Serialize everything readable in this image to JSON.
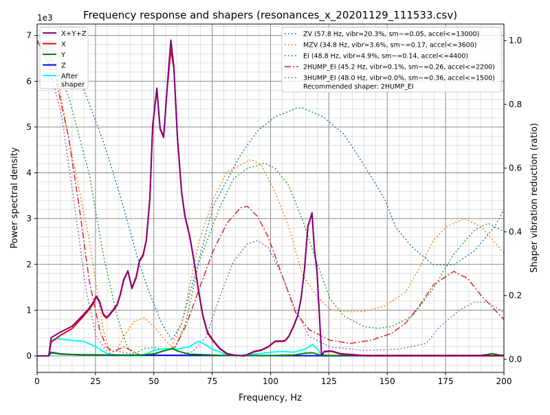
{
  "chart_data": {
    "type": "line",
    "title": "Frequency response and shapers (resonances_x_20201129_111533.csv)",
    "xlabel": "Frequency, Hz",
    "ylabel": "Power spectral density",
    "ylabel_right": "Shaper vibration reduction (ratio)",
    "y_offset_text": "1e3",
    "xlim": [
      0,
      200
    ],
    "ylim": [
      -360,
      7250
    ],
    "ylim_right": [
      -0.041,
      1.052
    ],
    "xticks": [
      "0",
      "25",
      "50",
      "75",
      "100",
      "125",
      "150",
      "175",
      "200"
    ],
    "yticks": [
      "0",
      "1",
      "2",
      "3",
      "4",
      "5",
      "6",
      "7"
    ],
    "yticks_right": [
      "0.0",
      "0.2",
      "0.4",
      "0.6",
      "0.8",
      "1.0"
    ],
    "grid": true,
    "legend_left": {
      "placement": "top-left",
      "entries": [
        "X+Y+Z",
        "X",
        "Y",
        "Z",
        "After\nshaper"
      ]
    },
    "legend_right": {
      "placement": "top-right",
      "entries": [
        "ZV (57.8 Hz, vibr=20.3%, sm~=0.05, accel<=13000)",
        "MZV (34.8 Hz, vibr=3.6%, sm~=0.17, accel<=3600)",
        "EI (48.8 Hz, vibr=4.9%, sm~=0.14, accel<=4400)",
        "2HUMP_EI (45.2 Hz, vibr=0.1%, sm~=0.26, accel<=2200)",
        "3HUMP_EI (48.0 Hz, vibr=0.0%, sm~=0.36, accel<=1500)"
      ],
      "note": "Recommended shaper: 2HUMP_EI"
    },
    "psd_series": [
      {
        "name": "X+Y+Z",
        "color": "#800080",
        "x": [
          0,
          5,
          6,
          10,
          15,
          19.4,
          22.4,
          24.4,
          25.3,
          26.8,
          28.3,
          29.7,
          31.2,
          34.2,
          35.6,
          37.1,
          38.9,
          40.6,
          42.4,
          43.9,
          45.4,
          46.8,
          48.3,
          49.5,
          51.3,
          52.7,
          54.2,
          55.7,
          57.3,
          58.6,
          60.1,
          61.9,
          63.3,
          65.4,
          67.2,
          69.2,
          71,
          73,
          75.4,
          78.4,
          81.3,
          84.2,
          88.7,
          93,
          96,
          99,
          102,
          105,
          106.3,
          107.8,
          109.9,
          111.6,
          113.1,
          114.6,
          116,
          117.8,
          118.7,
          119.9,
          121.9,
          123,
          126,
          130,
          140,
          200
        ],
        "y": [
          0,
          0,
          400,
          520,
          650,
          880,
          1050,
          1200,
          1310,
          1190,
          920,
          840,
          920,
          1120,
          1340,
          1670,
          1860,
          1490,
          1720,
          2090,
          2210,
          2540,
          3450,
          5030,
          5850,
          4970,
          4790,
          5850,
          6900,
          6300,
          4790,
          3590,
          3070,
          2620,
          2090,
          1420,
          890,
          520,
          340,
          160,
          55,
          20,
          0,
          100,
          130,
          205,
          325,
          325,
          340,
          430,
          655,
          880,
          1260,
          1930,
          2830,
          3130,
          2380,
          1860,
          0,
          100,
          110,
          50,
          10,
          10
        ]
      },
      {
        "name": "X",
        "color": "#ff0000",
        "x": [
          0,
          5,
          6,
          10,
          15,
          19.4,
          22.4,
          24.4,
          25.3,
          26.8,
          28.3,
          29.7,
          31.2,
          34.2,
          35.6,
          37.1,
          38.9,
          40.6,
          42.4,
          43.9,
          45.4,
          46.8,
          48.3,
          49.5,
          51.3,
          52.7,
          54.2,
          55.7,
          57.3,
          58.6,
          60.1,
          61.9,
          63.3,
          65.4,
          67.2,
          69.2,
          71,
          73,
          75.4,
          78.4,
          81.3,
          84.2,
          88.7,
          93,
          96,
          99,
          102,
          105,
          106.3,
          107.8,
          109.9,
          111.6,
          113.1,
          114.6,
          116,
          117.8,
          118.7,
          119.9,
          121.9,
          123,
          126,
          130,
          140,
          200
        ],
        "y": [
          0,
          0,
          300,
          450,
          600,
          840,
          1020,
          1170,
          1290,
          1170,
          900,
          825,
          900,
          1100,
          1320,
          1650,
          1850,
          1470,
          1700,
          2070,
          2190,
          2520,
          3420,
          5000,
          5830,
          4950,
          4770,
          5830,
          6700,
          6280,
          4770,
          3570,
          3050,
          2600,
          2070,
          1400,
          870,
          500,
          320,
          150,
          45,
          15,
          0,
          90,
          120,
          195,
          315,
          315,
          330,
          420,
          645,
          870,
          1250,
          1920,
          2820,
          3120,
          2370,
          1850,
          0,
          90,
          100,
          40,
          0,
          0
        ]
      },
      {
        "name": "Y",
        "color": "#008000",
        "x": [
          0,
          5,
          6,
          10,
          20,
          40,
          50,
          55,
          58,
          60,
          65,
          70,
          80,
          100,
          110,
          115,
          118,
          121,
          125,
          190,
          195,
          198,
          200
        ],
        "y": [
          0,
          0,
          70,
          40,
          20,
          10,
          40,
          120,
          160,
          110,
          40,
          30,
          10,
          10,
          20,
          60,
          70,
          20,
          10,
          10,
          50,
          20,
          10
        ]
      },
      {
        "name": "Z",
        "color": "#0000ff",
        "x": [
          0,
          5,
          6,
          10,
          15,
          20,
          30,
          50,
          100,
          200
        ],
        "y": [
          0,
          0,
          80,
          45,
          30,
          25,
          20,
          15,
          5,
          0
        ]
      },
      {
        "name": "After\nshaper",
        "color": "#00ffff",
        "x": [
          0,
          5,
          6,
          8,
          15,
          20,
          25,
          30,
          35,
          45,
          50,
          55,
          60,
          65,
          69,
          72,
          75,
          80,
          85,
          90,
          95,
          100,
          105,
          110,
          115,
          118,
          120,
          122,
          200
        ],
        "y": [
          0,
          0,
          350,
          380,
          340,
          320,
          200,
          50,
          10,
          0,
          120,
          160,
          150,
          200,
          320,
          250,
          150,
          50,
          0,
          30,
          50,
          80,
          100,
          80,
          150,
          250,
          160,
          0,
          0
        ]
      }
    ],
    "shaper_series": [
      {
        "name": "ZV",
        "color": "#1f77b4",
        "dash": "2,3",
        "x": [
          0,
          5,
          10,
          19.4,
          28.3,
          35.6,
          43,
          47.4,
          53.3,
          57.7,
          62,
          68,
          75.4,
          87.2,
          94.5,
          102,
          110.7,
          113.7,
          122.5,
          131.4,
          140,
          149,
          153.5,
          160.8,
          169.7,
          178.5,
          187.3,
          196,
          200
        ],
        "y": [
          1.0,
          0.98,
          0.95,
          0.858,
          0.685,
          0.513,
          0.319,
          0.222,
          0.114,
          0.06,
          0.114,
          0.276,
          0.48,
          0.642,
          0.718,
          0.761,
          0.787,
          0.789,
          0.761,
          0.707,
          0.61,
          0.502,
          0.416,
          0.351,
          0.297,
          0.297,
          0.34,
          0.416,
          0.47
        ]
      },
      {
        "name": "MZV",
        "color": "#ff7f0e",
        "dash": "2,3",
        "x": [
          0,
          7.7,
          13.5,
          22.4,
          28.3,
          31.2,
          34.2,
          37.1,
          41.5,
          46,
          50.4,
          54.8,
          57.7,
          62,
          69.5,
          75.4,
          81.3,
          87.2,
          91.6,
          96,
          102,
          107.8,
          113.7,
          119.6,
          125.5,
          131.4,
          140,
          149,
          157.9,
          163.8,
          169.7,
          175.5,
          182.9,
          190.3,
          200
        ],
        "y": [
          1.0,
          0.922,
          0.696,
          0.373,
          0.093,
          0.02,
          0.028,
          0.071,
          0.119,
          0.13,
          0.1,
          0.06,
          0.039,
          0.114,
          0.373,
          0.502,
          0.588,
          0.61,
          0.627,
          0.61,
          0.524,
          0.416,
          0.265,
          0.2,
          0.157,
          0.15,
          0.15,
          0.168,
          0.211,
          0.287,
          0.373,
          0.416,
          0.442,
          0.416,
          0.334
        ]
      },
      {
        "name": "EI",
        "color": "#2ca02c",
        "dash": "2,3",
        "x": [
          0,
          5,
          13.5,
          22.4,
          28.3,
          34.2,
          38.6,
          41.5,
          46,
          50.4,
          54.8,
          59.2,
          63.6,
          69.5,
          78.4,
          84.2,
          90.1,
          97.5,
          102,
          107.8,
          113.7,
          119.6,
          125.5,
          131.4,
          140,
          146,
          152,
          160.8,
          169.7,
          178.5,
          187.3,
          193.2,
          200
        ],
        "y": [
          1.0,
          0.96,
          0.825,
          0.578,
          0.33,
          0.136,
          0.039,
          0.017,
          0.034,
          0.037,
          0.028,
          0.039,
          0.114,
          0.308,
          0.48,
          0.567,
          0.599,
          0.616,
          0.599,
          0.545,
          0.438,
          0.308,
          0.19,
          0.136,
          0.103,
          0.097,
          0.103,
          0.136,
          0.222,
          0.33,
          0.405,
          0.427,
          0.401
        ]
      },
      {
        "name": "2HUMP_EI",
        "color": "#d62728",
        "dash": "9,3,2,3",
        "x": [
          0,
          7.7,
          13.5,
          18,
          22.4,
          26.8,
          29.7,
          32.7,
          37.1,
          41.5,
          44.5,
          48.9,
          54.8,
          59.2,
          63.6,
          69.5,
          75.4,
          81.3,
          87.2,
          90.1,
          94.5,
          99,
          104.9,
          110.7,
          116.6,
          125.5,
          134.3,
          143.2,
          152,
          157.9,
          163.8,
          169.7,
          178.5,
          184.4,
          190.3,
          200
        ],
        "y": [
          1.0,
          0.89,
          0.696,
          0.48,
          0.244,
          0.093,
          0.039,
          0.024,
          0.039,
          0.024,
          0.011,
          0.017,
          0.028,
          0.039,
          0.103,
          0.222,
          0.34,
          0.427,
          0.476,
          0.48,
          0.448,
          0.384,
          0.265,
          0.147,
          0.093,
          0.06,
          0.05,
          0.06,
          0.082,
          0.114,
          0.168,
          0.233,
          0.276,
          0.254,
          0.2,
          0.125
        ]
      },
      {
        "name": "3HUMP_EI",
        "color": "#9467bd",
        "dash": "2,3",
        "x": [
          0,
          4.7,
          10.6,
          16.5,
          20.9,
          25.3,
          29.7,
          35.6,
          43,
          48.9,
          54.8,
          60.7,
          66.6,
          72.5,
          78.4,
          84.2,
          90.1,
          94.5,
          99,
          104.9,
          110.7,
          116.6,
          125.5,
          140,
          155,
          166.7,
          172.6,
          181.4,
          187.3,
          193.2,
          200
        ],
        "y": [
          1.0,
          0.933,
          0.761,
          0.459,
          0.222,
          0.071,
          0.028,
          0.024,
          0.013,
          0.013,
          0.013,
          0.013,
          0.024,
          0.071,
          0.2,
          0.308,
          0.362,
          0.373,
          0.351,
          0.265,
          0.157,
          0.071,
          0.039,
          0.028,
          0.032,
          0.05,
          0.103,
          0.157,
          0.179,
          0.179,
          0.147
        ]
      }
    ]
  }
}
